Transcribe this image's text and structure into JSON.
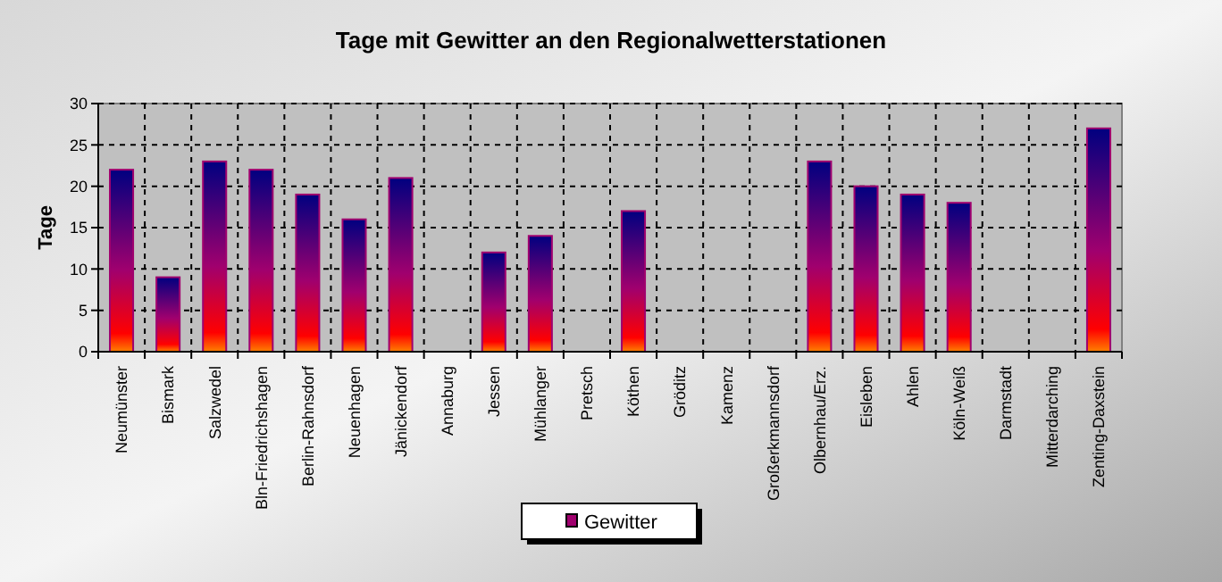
{
  "chart_data": {
    "type": "bar",
    "title": "Tage mit Gewitter an den Regionalwetterstationen",
    "ylabel": "Tage",
    "categories": [
      "Neumünster",
      "Bismark",
      "Salzwedel",
      "Bln-Friedrichshagen",
      "Berlin-Rahnsdorf",
      "Neuenhagen",
      "Jänickendorf",
      "Annaburg",
      "Jessen",
      "Mühlanger",
      "Pretsch",
      "Köthen",
      "Gröditz",
      "Kamenz",
      "Großerkmannsdorf",
      "Olbernhau/Erz.",
      "Eisleben",
      "Ahlen",
      "Köln-Weiß",
      "Darmstadt",
      "Mitterdarching",
      "Zenting-Daxstein"
    ],
    "series": [
      {
        "name": "Gewitter",
        "color": "#a0006e",
        "values": [
          22,
          9,
          23,
          22,
          19,
          16,
          21,
          null,
          12,
          14,
          null,
          17,
          null,
          null,
          null,
          23,
          20,
          19,
          18,
          null,
          null,
          27
        ]
      }
    ],
    "ylim": [
      0,
      30
    ],
    "yticks": [
      0,
      5,
      10,
      15,
      20,
      25,
      30
    ],
    "grid": true,
    "legend": "bottom"
  }
}
